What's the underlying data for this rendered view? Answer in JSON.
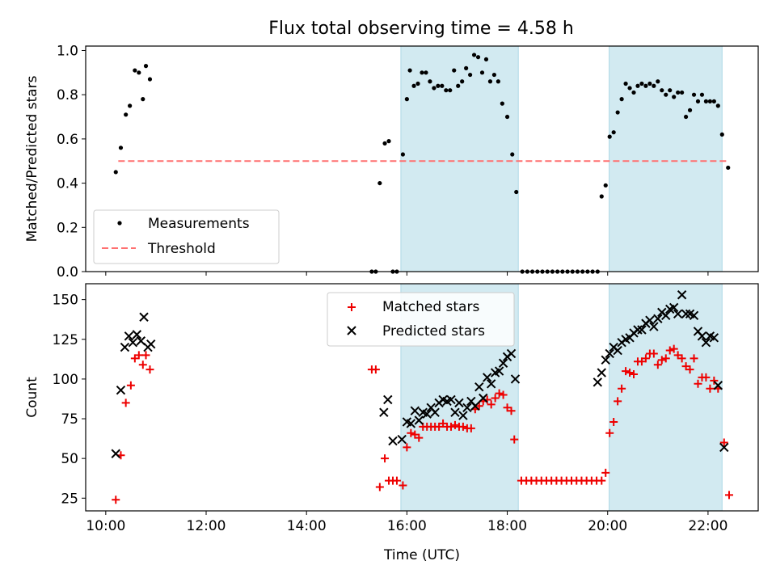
{
  "title": "Flux total observing time = 4.58 h",
  "colors": {
    "measurement": "#000000",
    "threshold": "#ff7070",
    "matched": "#ee0000",
    "predicted": "#000000",
    "shade": "#add8e6"
  },
  "chart_data": [
    {
      "type": "scatter",
      "ylabel": "Matched/Predicted stars",
      "xlim": [
        9.6,
        23.0
      ],
      "ylim": [
        0,
        1.02
      ],
      "yticks": [
        0.0,
        0.2,
        0.4,
        0.6,
        0.8,
        1.0
      ],
      "ytick_labels": [
        "0.0",
        "0.2",
        "0.4",
        "0.6",
        "0.8",
        "1.0"
      ],
      "shaded_regions": [
        [
          15.88,
          18.22
        ],
        [
          20.03,
          22.28
        ]
      ],
      "legend": {
        "position": "lower-left",
        "entries": [
          "Measurements",
          "Threshold"
        ]
      },
      "threshold": {
        "name": "Threshold",
        "value": 0.5,
        "x_range": [
          10.25,
          22.4
        ]
      },
      "series": [
        {
          "name": "Measurements",
          "marker": "dot",
          "points": [
            [
              10.2,
              0.45
            ],
            [
              10.3,
              0.56
            ],
            [
              10.4,
              0.71
            ],
            [
              10.48,
              0.75
            ],
            [
              10.58,
              0.91
            ],
            [
              10.66,
              0.9
            ],
            [
              10.74,
              0.78
            ],
            [
              10.8,
              0.93
            ],
            [
              10.88,
              0.87
            ],
            [
              15.3,
              0.0
            ],
            [
              15.38,
              0.0
            ],
            [
              15.46,
              0.4
            ],
            [
              15.56,
              0.58
            ],
            [
              15.64,
              0.59
            ],
            [
              15.72,
              0.0
            ],
            [
              15.8,
              0.0
            ],
            [
              15.92,
              0.53
            ],
            [
              16.0,
              0.78
            ],
            [
              16.06,
              0.91
            ],
            [
              16.14,
              0.84
            ],
            [
              16.22,
              0.85
            ],
            [
              16.3,
              0.9
            ],
            [
              16.38,
              0.9
            ],
            [
              16.46,
              0.86
            ],
            [
              16.54,
              0.83
            ],
            [
              16.62,
              0.84
            ],
            [
              16.7,
              0.84
            ],
            [
              16.78,
              0.82
            ],
            [
              16.86,
              0.82
            ],
            [
              16.94,
              0.91
            ],
            [
              17.02,
              0.84
            ],
            [
              17.1,
              0.86
            ],
            [
              17.18,
              0.92
            ],
            [
              17.26,
              0.89
            ],
            [
              17.34,
              0.98
            ],
            [
              17.42,
              0.97
            ],
            [
              17.5,
              0.9
            ],
            [
              17.58,
              0.96
            ],
            [
              17.66,
              0.86
            ],
            [
              17.74,
              0.89
            ],
            [
              17.82,
              0.86
            ],
            [
              17.9,
              0.76
            ],
            [
              18.0,
              0.7
            ],
            [
              18.1,
              0.53
            ],
            [
              18.18,
              0.36
            ],
            [
              18.3,
              0.0
            ],
            [
              18.4,
              0.0
            ],
            [
              18.5,
              0.0
            ],
            [
              18.6,
              0.0
            ],
            [
              18.7,
              0.0
            ],
            [
              18.8,
              0.0
            ],
            [
              18.9,
              0.0
            ],
            [
              19.0,
              0.0
            ],
            [
              19.1,
              0.0
            ],
            [
              19.2,
              0.0
            ],
            [
              19.3,
              0.0
            ],
            [
              19.4,
              0.0
            ],
            [
              19.5,
              0.0
            ],
            [
              19.6,
              0.0
            ],
            [
              19.7,
              0.0
            ],
            [
              19.8,
              0.0
            ],
            [
              19.88,
              0.34
            ],
            [
              19.96,
              0.39
            ],
            [
              20.04,
              0.61
            ],
            [
              20.12,
              0.63
            ],
            [
              20.2,
              0.72
            ],
            [
              20.28,
              0.78
            ],
            [
              20.36,
              0.85
            ],
            [
              20.44,
              0.83
            ],
            [
              20.52,
              0.81
            ],
            [
              20.6,
              0.84
            ],
            [
              20.68,
              0.85
            ],
            [
              20.76,
              0.84
            ],
            [
              20.84,
              0.85
            ],
            [
              20.92,
              0.84
            ],
            [
              21.0,
              0.86
            ],
            [
              21.08,
              0.82
            ],
            [
              21.16,
              0.8
            ],
            [
              21.24,
              0.82
            ],
            [
              21.32,
              0.79
            ],
            [
              21.4,
              0.81
            ],
            [
              21.48,
              0.81
            ],
            [
              21.56,
              0.7
            ],
            [
              21.64,
              0.73
            ],
            [
              21.72,
              0.8
            ],
            [
              21.8,
              0.77
            ],
            [
              21.88,
              0.8
            ],
            [
              21.96,
              0.77
            ],
            [
              22.04,
              0.77
            ],
            [
              22.12,
              0.77
            ],
            [
              22.2,
              0.75
            ],
            [
              22.28,
              0.62
            ],
            [
              22.4,
              0.47
            ]
          ]
        }
      ]
    },
    {
      "type": "scatter",
      "xlabel": "Time (UTC)",
      "ylabel": "Count",
      "xlim": [
        9.6,
        23.0
      ],
      "ylim": [
        17,
        160
      ],
      "yticks": [
        25,
        50,
        75,
        100,
        125,
        150
      ],
      "ytick_labels": [
        "25",
        "50",
        "75",
        "100",
        "125",
        "150"
      ],
      "xticks": [
        10,
        12,
        14,
        16,
        18,
        20,
        22
      ],
      "xtick_labels": [
        "10:00",
        "12:00",
        "14:00",
        "16:00",
        "18:00",
        "20:00",
        "22:00"
      ],
      "shaded_regions": [
        [
          15.88,
          18.22
        ],
        [
          20.03,
          22.28
        ]
      ],
      "legend": {
        "position": "top-center",
        "entries": [
          "Matched stars",
          "Predicted stars"
        ]
      },
      "series": [
        {
          "name": "Matched stars",
          "marker": "plus",
          "points": [
            [
              10.2,
              24
            ],
            [
              10.3,
              52
            ],
            [
              10.4,
              85
            ],
            [
              10.5,
              96
            ],
            [
              10.58,
              113
            ],
            [
              10.66,
              115
            ],
            [
              10.74,
              109
            ],
            [
              10.8,
              115
            ],
            [
              10.88,
              106
            ],
            [
              15.3,
              106
            ],
            [
              15.38,
              106
            ],
            [
              15.46,
              32
            ],
            [
              15.56,
              50
            ],
            [
              15.64,
              36
            ],
            [
              15.72,
              36
            ],
            [
              15.8,
              36
            ],
            [
              15.92,
              33
            ],
            [
              16.0,
              57
            ],
            [
              16.08,
              66
            ],
            [
              16.16,
              65
            ],
            [
              16.24,
              63
            ],
            [
              16.32,
              70
            ],
            [
              16.4,
              70
            ],
            [
              16.48,
              70
            ],
            [
              16.56,
              70
            ],
            [
              16.64,
              70
            ],
            [
              16.72,
              72
            ],
            [
              16.8,
              70
            ],
            [
              16.88,
              70
            ],
            [
              16.96,
              71
            ],
            [
              17.04,
              70
            ],
            [
              17.12,
              70
            ],
            [
              17.2,
              69
            ],
            [
              17.28,
              69
            ],
            [
              17.36,
              81
            ],
            [
              17.44,
              83
            ],
            [
              17.52,
              86
            ],
            [
              17.6,
              87
            ],
            [
              17.68,
              84
            ],
            [
              17.76,
              88
            ],
            [
              17.84,
              91
            ],
            [
              17.92,
              90
            ],
            [
              18.0,
              82
            ],
            [
              18.08,
              80
            ],
            [
              18.14,
              62
            ],
            [
              18.28,
              36
            ],
            [
              18.38,
              36
            ],
            [
              18.48,
              36
            ],
            [
              18.58,
              36
            ],
            [
              18.68,
              36
            ],
            [
              18.78,
              36
            ],
            [
              18.88,
              36
            ],
            [
              18.98,
              36
            ],
            [
              19.08,
              36
            ],
            [
              19.18,
              36
            ],
            [
              19.28,
              36
            ],
            [
              19.38,
              36
            ],
            [
              19.48,
              36
            ],
            [
              19.58,
              36
            ],
            [
              19.68,
              36
            ],
            [
              19.78,
              36
            ],
            [
              19.88,
              36
            ],
            [
              19.96,
              41
            ],
            [
              20.04,
              66
            ],
            [
              20.12,
              73
            ],
            [
              20.2,
              86
            ],
            [
              20.28,
              94
            ],
            [
              20.36,
              105
            ],
            [
              20.44,
              104
            ],
            [
              20.52,
              103
            ],
            [
              20.6,
              111
            ],
            [
              20.68,
              111
            ],
            [
              20.76,
              113
            ],
            [
              20.84,
              116
            ],
            [
              20.92,
              116
            ],
            [
              21.0,
              109
            ],
            [
              21.08,
              112
            ],
            [
              21.16,
              113
            ],
            [
              21.24,
              118
            ],
            [
              21.32,
              119
            ],
            [
              21.4,
              115
            ],
            [
              21.48,
              113
            ],
            [
              21.56,
              108
            ],
            [
              21.64,
              106
            ],
            [
              21.72,
              113
            ],
            [
              21.8,
              97
            ],
            [
              21.88,
              101
            ],
            [
              21.96,
              101
            ],
            [
              22.04,
              94
            ],
            [
              22.12,
              99
            ],
            [
              22.2,
              94
            ],
            [
              22.32,
              60
            ],
            [
              22.42,
              27
            ]
          ]
        },
        {
          "name": "Predicted stars",
          "marker": "x",
          "points": [
            [
              10.2,
              53
            ],
            [
              10.3,
              93
            ],
            [
              10.38,
              120
            ],
            [
              10.46,
              127
            ],
            [
              10.54,
              123
            ],
            [
              10.62,
              128
            ],
            [
              10.7,
              124
            ],
            [
              10.76,
              139
            ],
            [
              10.84,
              120
            ],
            [
              10.9,
              122
            ],
            [
              15.54,
              79
            ],
            [
              15.62,
              87
            ],
            [
              15.72,
              61
            ],
            [
              15.9,
              62
            ],
            [
              16.0,
              73
            ],
            [
              16.08,
              72
            ],
            [
              16.16,
              80
            ],
            [
              16.24,
              74
            ],
            [
              16.32,
              79
            ],
            [
              16.4,
              78
            ],
            [
              16.48,
              82
            ],
            [
              16.56,
              79
            ],
            [
              16.64,
              85
            ],
            [
              16.72,
              87
            ],
            [
              16.8,
              86
            ],
            [
              16.88,
              87
            ],
            [
              16.96,
              79
            ],
            [
              17.04,
              85
            ],
            [
              17.12,
              77
            ],
            [
              17.2,
              82
            ],
            [
              17.28,
              86
            ],
            [
              17.36,
              83
            ],
            [
              17.44,
              95
            ],
            [
              17.52,
              88
            ],
            [
              17.6,
              101
            ],
            [
              17.68,
              97
            ],
            [
              17.76,
              104
            ],
            [
              17.84,
              105
            ],
            [
              17.92,
              110
            ],
            [
              18.0,
              114
            ],
            [
              18.08,
              116
            ],
            [
              18.16,
              100
            ],
            [
              19.8,
              98
            ],
            [
              19.88,
              104
            ],
            [
              19.96,
              112
            ],
            [
              20.04,
              116
            ],
            [
              20.12,
              120
            ],
            [
              20.2,
              118
            ],
            [
              20.28,
              123
            ],
            [
              20.36,
              125
            ],
            [
              20.44,
              126
            ],
            [
              20.52,
              129
            ],
            [
              20.6,
              131
            ],
            [
              20.68,
              131
            ],
            [
              20.76,
              135
            ],
            [
              20.84,
              137
            ],
            [
              20.92,
              133
            ],
            [
              21.0,
              138
            ],
            [
              21.08,
              142
            ],
            [
              21.16,
              140
            ],
            [
              21.24,
              144
            ],
            [
              21.32,
              145
            ],
            [
              21.4,
              141
            ],
            [
              21.48,
              153
            ],
            [
              21.56,
              141
            ],
            [
              21.64,
              141
            ],
            [
              21.72,
              140
            ],
            [
              21.8,
              130
            ],
            [
              21.88,
              127
            ],
            [
              21.96,
              123
            ],
            [
              22.04,
              127
            ],
            [
              22.12,
              126
            ],
            [
              22.2,
              96
            ],
            [
              22.32,
              57
            ]
          ]
        }
      ]
    }
  ]
}
